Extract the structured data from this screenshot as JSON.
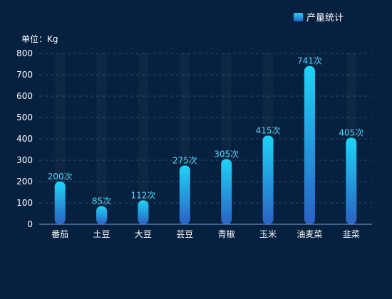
{
  "chart_data": {
    "type": "bar",
    "legend": {
      "label": "产量统计",
      "position": "top-right",
      "color": "#1aa3e8"
    },
    "unit_label": "单位：Kg",
    "categories": [
      "番茄",
      "土豆",
      "大豆",
      "芸豆",
      "青椒",
      "玉米",
      "油麦菜",
      "韭菜"
    ],
    "values": [
      200,
      85,
      112,
      275,
      305,
      415,
      741,
      405
    ],
    "value_suffix": "次",
    "ylim": [
      0,
      800
    ],
    "yticks": [
      0,
      100,
      200,
      300,
      400,
      500,
      600,
      700,
      800
    ],
    "grid": true,
    "grid_style": "dashed",
    "background_bars": true,
    "colors": {
      "bar_top": "#1fd3f7",
      "bar_bottom": "#2a62c4",
      "label": "#4fd6f2",
      "axis_text": "#ffffff",
      "grid": "#2a4868",
      "background": "#06203f"
    }
  }
}
